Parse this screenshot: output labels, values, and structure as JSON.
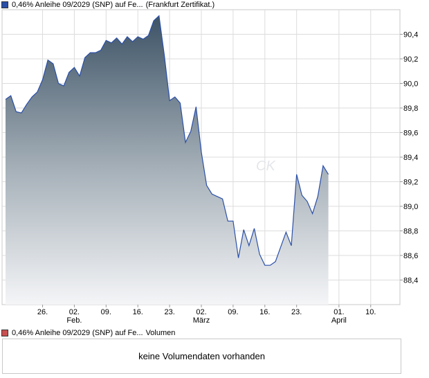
{
  "legend": {
    "price_label": "0,46% Anleihe 09/2029 (SNP) auf Fe...",
    "price_exchange": "(Frankfurt Zertifikat.)",
    "price_color": "#2a4fa8",
    "volume_label": "0,46% Anleihe 09/2029 (SNP) auf Fe...",
    "volume_suffix": "Volumen",
    "volume_color": "#c85050"
  },
  "volume_panel": {
    "message": "keine Volumendaten vorhanden"
  },
  "watermark": "CK",
  "chart_data": {
    "type": "area",
    "ylim": [
      88.2,
      90.6
    ],
    "y_ticks": [
      "88,4",
      "88,6",
      "88,8",
      "89,0",
      "89,2",
      "89,4",
      "89,6",
      "89,8",
      "90,0",
      "90,2",
      "90,4"
    ],
    "y_tick_values": [
      88.4,
      88.6,
      88.8,
      89.0,
      89.2,
      89.4,
      89.6,
      89.8,
      90.0,
      90.2,
      90.4
    ],
    "x_ticks": [
      {
        "label": "26.",
        "sub": "",
        "index": 7
      },
      {
        "label": "02.",
        "sub": "Feb.",
        "index": 13
      },
      {
        "label": "09.",
        "sub": "",
        "index": 19
      },
      {
        "label": "16.",
        "sub": "",
        "index": 25
      },
      {
        "label": "23.",
        "sub": "",
        "index": 31
      },
      {
        "label": "02.",
        "sub": "März",
        "index": 37
      },
      {
        "label": "09.",
        "sub": "",
        "index": 43
      },
      {
        "label": "16.",
        "sub": "",
        "index": 49
      },
      {
        "label": "23.",
        "sub": "",
        "index": 55
      },
      {
        "label": "01.",
        "sub": "April",
        "index": 63
      },
      {
        "label": "10.",
        "sub": "",
        "index": 69
      }
    ],
    "grid": true,
    "n_points": 75,
    "series": [
      {
        "values": [
          89.87,
          89.9,
          89.77,
          89.76,
          89.83,
          89.89,
          89.93,
          90.03,
          90.19,
          90.16,
          90.0,
          89.98,
          90.09,
          90.13,
          90.06,
          90.21,
          90.25,
          90.25,
          90.27,
          90.35,
          90.33,
          90.37,
          90.32,
          90.38,
          90.34,
          90.38,
          90.36,
          90.39,
          90.51,
          90.55,
          90.23,
          89.86,
          89.89,
          89.84,
          89.52,
          89.61,
          89.81,
          89.44,
          89.17,
          89.1,
          89.08,
          89.06,
          88.88,
          88.88,
          88.58,
          88.81,
          88.68,
          88.82,
          88.61,
          88.52,
          88.52,
          88.55,
          88.67,
          88.79,
          88.68,
          89.26,
          89.09,
          89.04,
          88.94,
          89.08,
          89.33,
          89.26
        ]
      }
    ]
  }
}
